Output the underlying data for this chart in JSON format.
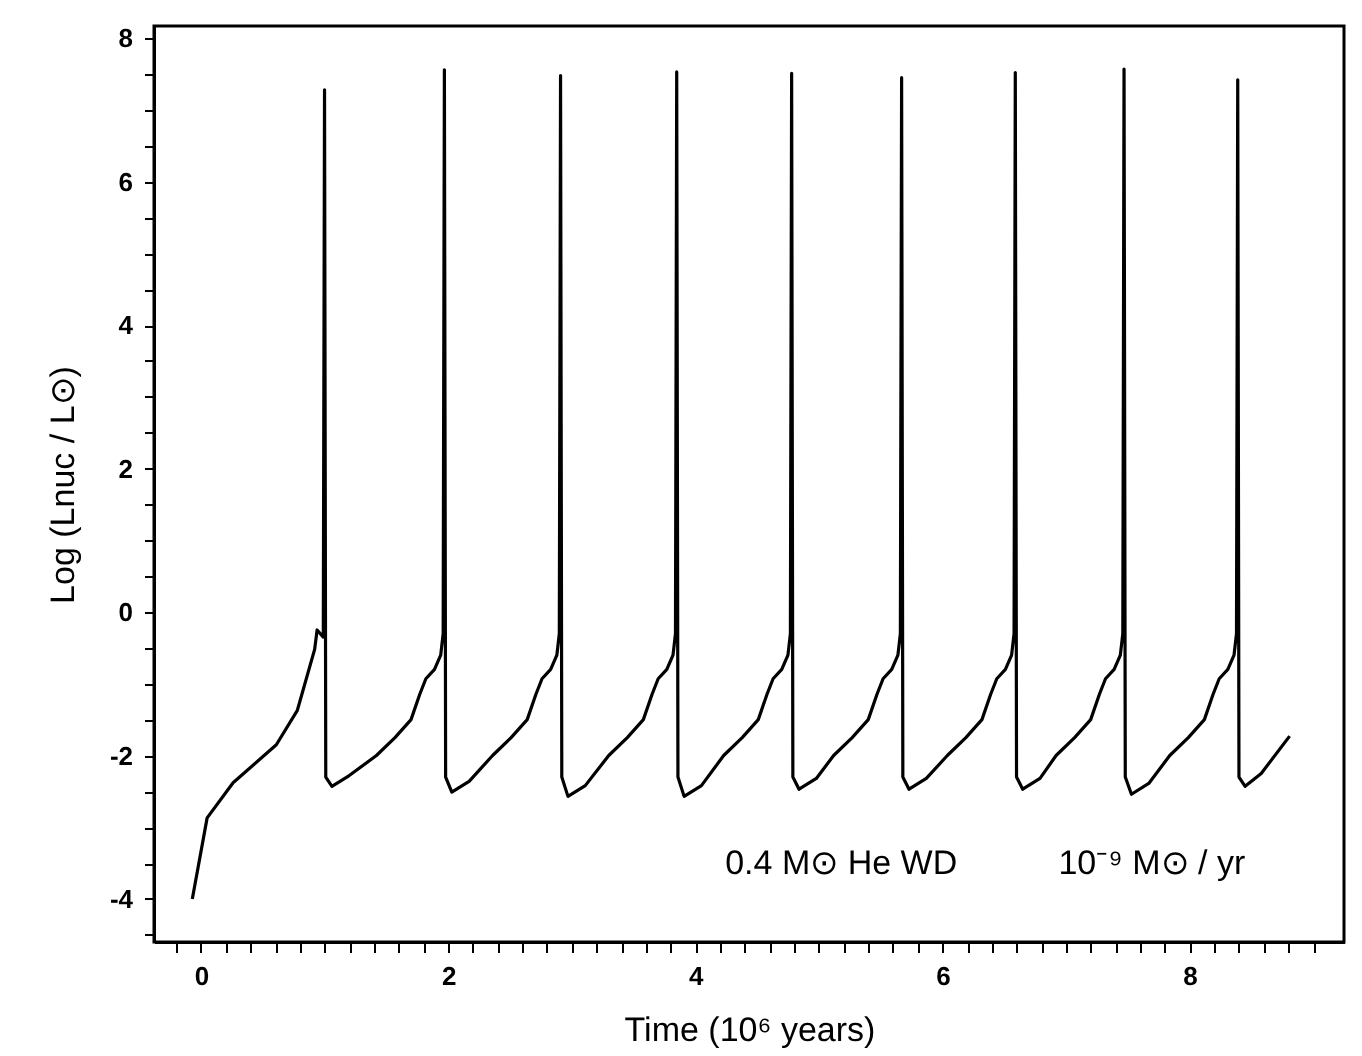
{
  "chart_data": {
    "type": "line",
    "xlabel": "Time (10⁶ years)",
    "ylabel": "Log (Lnuc / L⊙)",
    "annotations": [
      "0.4 M⊙ He WD",
      "10⁻⁹ M⊙ / yr"
    ],
    "xlim": [
      -0.38,
      9.25
    ],
    "ylim": [
      -4.6,
      8.17
    ],
    "xticks": [
      {
        "value": -0.2,
        "label": null
      },
      0,
      {
        "value": 0.2,
        "label": null
      },
      {
        "value": 0.4,
        "label": null
      },
      {
        "value": 0.6,
        "label": null
      },
      {
        "value": 0.8,
        "label": null
      },
      {
        "value": 1,
        "label": null
      },
      {
        "value": 1.2,
        "label": null
      },
      {
        "value": 1.4,
        "label": null
      },
      {
        "value": 1.6,
        "label": null
      },
      {
        "value": 1.8,
        "label": null
      },
      2,
      {
        "value": 2.2,
        "label": null
      },
      {
        "value": 2.4,
        "label": null
      },
      {
        "value": 2.6,
        "label": null
      },
      {
        "value": 2.8,
        "label": null
      },
      {
        "value": 3,
        "label": null
      },
      {
        "value": 3.2,
        "label": null
      },
      {
        "value": 3.4,
        "label": null
      },
      {
        "value": 3.6,
        "label": null
      },
      {
        "value": 3.8,
        "label": null
      },
      4,
      {
        "value": 4.2,
        "label": null
      },
      {
        "value": 4.4,
        "label": null
      },
      {
        "value": 4.6,
        "label": null
      },
      {
        "value": 4.8,
        "label": null
      },
      {
        "value": 5,
        "label": null
      },
      {
        "value": 5.2,
        "label": null
      },
      {
        "value": 5.4,
        "label": null
      },
      {
        "value": 5.6,
        "label": null
      },
      {
        "value": 5.8,
        "label": null
      },
      6,
      {
        "value": 6.2,
        "label": null
      },
      {
        "value": 6.4,
        "label": null
      },
      {
        "value": 6.6,
        "label": null
      },
      {
        "value": 6.8,
        "label": null
      },
      {
        "value": 7,
        "label": null
      },
      {
        "value": 7.2,
        "label": null
      },
      {
        "value": 7.4,
        "label": null
      },
      {
        "value": 7.6,
        "label": null
      },
      {
        "value": 7.8,
        "label": null
      },
      8,
      {
        "value": 8.2,
        "label": null
      },
      {
        "value": 8.4,
        "label": null
      },
      {
        "value": 8.6,
        "label": null
      },
      {
        "value": 8.8,
        "label": null
      },
      {
        "value": 9,
        "label": null
      }
    ],
    "yticks": [
      {
        "value": -4.5,
        "label": null
      },
      -4,
      {
        "value": -3.5,
        "label": null
      },
      {
        "value": -3,
        "label": null
      },
      {
        "value": -2.5,
        "label": null
      },
      -2,
      {
        "value": -1.5,
        "label": null
      },
      {
        "value": -1,
        "label": null
      },
      {
        "value": -0.5,
        "label": null
      },
      0,
      {
        "value": 0.5,
        "label": null
      },
      {
        "value": 1,
        "label": null
      },
      {
        "value": 1.5,
        "label": null
      },
      2,
      {
        "value": 2.5,
        "label": null
      },
      {
        "value": 3,
        "label": null
      },
      {
        "value": 3.5,
        "label": null
      },
      4,
      {
        "value": 4.5,
        "label": null
      },
      {
        "value": 5,
        "label": null
      },
      {
        "value": 5.5,
        "label": null
      },
      6,
      {
        "value": 6.5,
        "label": null
      },
      {
        "value": 7,
        "label": null
      },
      {
        "value": 7.5,
        "label": null
      },
      8
    ],
    "grid": false,
    "series": [
      {
        "color": "#000000",
        "x": [
          -0.07,
          0.05,
          0.26,
          0.61,
          0.78,
          0.92,
          0.94,
          0.99,
          1.0,
          1.01,
          1.06,
          1.2,
          1.42,
          1.57,
          1.7,
          1.77,
          1.82,
          1.89,
          1.94,
          1.96,
          1.97,
          1.98,
          2.03,
          2.17,
          2.36,
          2.51,
          2.64,
          2.71,
          2.76,
          2.83,
          2.88,
          2.9,
          2.91,
          2.92,
          2.97,
          3.11,
          3.3,
          3.45,
          3.58,
          3.65,
          3.7,
          3.77,
          3.82,
          3.84,
          3.85,
          3.86,
          3.91,
          4.05,
          4.23,
          4.38,
          4.51,
          4.58,
          4.63,
          4.7,
          4.75,
          4.77,
          4.78,
          4.79,
          4.84,
          4.98,
          5.12,
          5.27,
          5.4,
          5.47,
          5.52,
          5.59,
          5.64,
          5.66,
          5.67,
          5.68,
          5.73,
          5.87,
          6.04,
          6.19,
          6.32,
          6.39,
          6.44,
          6.51,
          6.56,
          6.58,
          6.59,
          6.6,
          6.65,
          6.79,
          6.92,
          7.07,
          7.2,
          7.27,
          7.32,
          7.39,
          7.44,
          7.46,
          7.47,
          7.48,
          7.53,
          7.67,
          7.84,
          7.99,
          8.12,
          8.19,
          8.24,
          8.31,
          8.36,
          8.38,
          8.39,
          8.4,
          8.45,
          8.58,
          8.81
        ],
        "values": [
          -4.0,
          -2.87,
          -2.38,
          -1.85,
          -1.37,
          -0.52,
          -0.25,
          -0.35,
          7.28,
          -2.3,
          -2.43,
          -2.28,
          -2.0,
          -1.75,
          -1.5,
          -1.15,
          -0.93,
          -0.8,
          -0.6,
          -0.3,
          7.56,
          -2.3,
          -2.51,
          -2.36,
          -2.0,
          -1.75,
          -1.5,
          -1.15,
          -0.93,
          -0.8,
          -0.6,
          -0.3,
          7.48,
          -2.3,
          -2.57,
          -2.42,
          -2.0,
          -1.75,
          -1.5,
          -1.15,
          -0.93,
          -0.8,
          -0.6,
          -0.3,
          7.53,
          -2.3,
          -2.57,
          -2.42,
          -2.0,
          -1.75,
          -1.5,
          -1.15,
          -0.93,
          -0.8,
          -0.6,
          -0.3,
          7.51,
          -2.3,
          -2.47,
          -2.32,
          -2.0,
          -1.75,
          -1.5,
          -1.15,
          -0.93,
          -0.8,
          -0.6,
          -0.3,
          7.45,
          -2.3,
          -2.47,
          -2.32,
          -2.0,
          -1.75,
          -1.5,
          -1.15,
          -0.93,
          -0.8,
          -0.6,
          -0.3,
          7.52,
          -2.3,
          -2.47,
          -2.32,
          -2.0,
          -1.75,
          -1.5,
          -1.15,
          -0.93,
          -0.8,
          -0.6,
          -0.3,
          7.57,
          -2.3,
          -2.54,
          -2.39,
          -2.0,
          -1.75,
          -1.5,
          -1.15,
          -0.93,
          -0.8,
          -0.6,
          -0.3,
          7.42,
          -2.3,
          -2.43,
          -2.25,
          -1.73
        ]
      }
    ]
  }
}
